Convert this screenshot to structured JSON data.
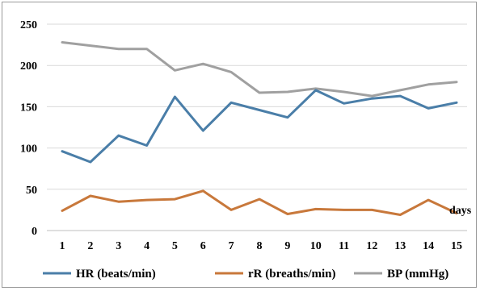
{
  "chart_data": {
    "type": "line",
    "x": [
      1,
      2,
      3,
      4,
      5,
      6,
      7,
      8,
      9,
      10,
      11,
      12,
      13,
      14,
      15
    ],
    "x_unit_label": "days",
    "ylim": [
      0,
      250
    ],
    "y_ticks": [
      0,
      50,
      100,
      150,
      200,
      250
    ],
    "grid": true,
    "legend_position": "bottom",
    "series": [
      {
        "name": "HR (beats/min)",
        "color": "#4a7ea8",
        "values": [
          96,
          83,
          115,
          103,
          162,
          121,
          155,
          146,
          137,
          170,
          154,
          160,
          163,
          148,
          155
        ]
      },
      {
        "name": "rR (breaths/min)",
        "color": "#c8783b",
        "values": [
          24,
          42,
          35,
          37,
          38,
          48,
          25,
          38,
          20,
          26,
          25,
          25,
          19,
          37,
          21
        ]
      },
      {
        "name": "BP (mmHg)",
        "color": "#a0a0a0",
        "values": [
          228,
          224,
          220,
          220,
          194,
          202,
          192,
          167,
          168,
          172,
          168,
          163,
          170,
          177,
          180
        ]
      }
    ]
  }
}
